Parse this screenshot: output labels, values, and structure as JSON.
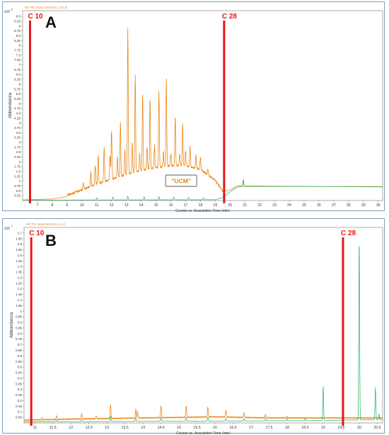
{
  "chart_data": [
    {
      "type": "line",
      "panel_letter": "A",
      "trace_title": "+EI TIC Scan 11Nov21_c18.d",
      "y_multiplier": "x10",
      "y_exponent": "6",
      "ylabel": "Abbondanza",
      "xlabel": "Counts vs. Acquisition Time (min)",
      "xlim": [
        6.0,
        30.3
      ],
      "ylim": [
        0,
        9.8
      ],
      "x_ticks": [
        7,
        8,
        9,
        10,
        11,
        12,
        13,
        14,
        15,
        16,
        17,
        18,
        19,
        20,
        21,
        22,
        23,
        24,
        25,
        26,
        27,
        28,
        29,
        30
      ],
      "y_ticks": [
        0.25,
        0.5,
        0.75,
        1,
        1.25,
        1.5,
        1.75,
        2,
        2.25,
        2.5,
        2.75,
        3,
        3.25,
        3.5,
        3.75,
        4,
        4.25,
        4.5,
        4.75,
        5,
        5.25,
        5.5,
        5.75,
        6,
        6.25,
        6.5,
        6.75,
        7,
        7.25,
        7.5,
        7.75,
        8,
        8.25,
        8.5,
        8.75,
        9,
        9.25,
        9.5
      ],
      "y_tick_labels": [
        "0.25",
        "0.5",
        "0.75",
        "1",
        "1.25",
        "1.5",
        "1.75",
        "2",
        "2.25",
        "2.5",
        "2.75",
        "3",
        "3.25",
        "3.5",
        "3.75",
        "4",
        "4.25",
        "4.5",
        "4.75",
        "5",
        "5.25",
        "5.5",
        "5.75",
        "6",
        "6.25",
        "6.5",
        "6.75",
        "7",
        "7.25",
        "7.5",
        "7.75",
        "8",
        "8.25",
        "8.5",
        "8.75",
        "9",
        "9.25",
        "9.5"
      ],
      "series": [
        {
          "color": "#e8820c",
          "baseline": [
            [
              6.0,
              0.03
            ],
            [
              8.0,
              0.08
            ],
            [
              9.0,
              0.2
            ],
            [
              10.0,
              0.5
            ],
            [
              11.0,
              0.8
            ],
            [
              12.0,
              1.05
            ],
            [
              13.0,
              1.3
            ],
            [
              14.0,
              1.5
            ],
            [
              15.0,
              1.65
            ],
            [
              16.0,
              1.75
            ],
            [
              17.0,
              1.75
            ],
            [
              18.0,
              1.55
            ],
            [
              19.0,
              1.0
            ],
            [
              19.5,
              0.45
            ],
            [
              20.0,
              0.55
            ],
            [
              20.5,
              0.75
            ],
            [
              21.0,
              0.75
            ],
            [
              30.3,
              0.7
            ]
          ],
          "peaks": [
            [
              9.1,
              0.3
            ],
            [
              9.6,
              0.45
            ],
            [
              10.1,
              0.9
            ],
            [
              10.6,
              1.4
            ],
            [
              10.9,
              1.8
            ],
            [
              11.1,
              2.3
            ],
            [
              11.5,
              2.75
            ],
            [
              11.9,
              2.3
            ],
            [
              12.0,
              3.6
            ],
            [
              12.4,
              2.2
            ],
            [
              12.6,
              4.0
            ],
            [
              12.9,
              2.6
            ],
            [
              13.1,
              8.8
            ],
            [
              13.4,
              3.0
            ],
            [
              13.6,
              6.5
            ],
            [
              13.9,
              2.4
            ],
            [
              14.1,
              5.5
            ],
            [
              14.4,
              2.7
            ],
            [
              14.6,
              5.3
            ],
            [
              14.9,
              2.8
            ],
            [
              15.2,
              5.6
            ],
            [
              15.5,
              2.5
            ],
            [
              15.7,
              6.2
            ],
            [
              16.0,
              2.4
            ],
            [
              16.3,
              4.3
            ],
            [
              16.6,
              2.4
            ],
            [
              16.8,
              3.9
            ],
            [
              17.0,
              2.5
            ],
            [
              17.3,
              2.8
            ],
            [
              17.7,
              2.3
            ],
            [
              18.0,
              2.2
            ],
            [
              18.5,
              1.6
            ],
            [
              20.9,
              1.1
            ]
          ]
        },
        {
          "color": "#2bb56a",
          "baseline": [
            [
              6.0,
              0.02
            ],
            [
              19.0,
              0.04
            ],
            [
              19.5,
              0.15
            ],
            [
              20.0,
              0.45
            ],
            [
              20.5,
              0.7
            ],
            [
              21.0,
              0.72
            ],
            [
              30.3,
              0.72
            ]
          ],
          "peaks": [
            [
              11.0,
              0.14
            ],
            [
              12.1,
              0.18
            ],
            [
              13.1,
              0.22
            ],
            [
              14.2,
              0.2
            ],
            [
              15.2,
              0.2
            ],
            [
              16.2,
              0.18
            ],
            [
              17.2,
              0.16
            ],
            [
              18.2,
              0.14
            ],
            [
              20.9,
              1.05
            ]
          ]
        }
      ],
      "annotations": [
        {
          "text": "C 10",
          "x": 6.5,
          "color": "#e8141c"
        },
        {
          "text": "C 28",
          "x": 19.6,
          "color": "#e8141c"
        },
        {
          "text": "\"UCM\"",
          "x": 16.7,
          "y": 0.4,
          "color": "#e8820c"
        }
      ]
    },
    {
      "type": "line",
      "panel_letter": "B",
      "trace_title": "+EI TIC Scan 8Nov21_c1.d",
      "y_multiplier": "x10",
      "y_exponent": "7",
      "ylabel": "Abbondanza",
      "xlabel": "Counts vs. Acquisition Time (min)",
      "xlim": [
        10.7,
        20.65
      ],
      "ylim": [
        0,
        1.75
      ],
      "x_ticks": [
        11,
        11.5,
        12,
        12.5,
        13,
        13.5,
        14,
        14.5,
        15,
        15.5,
        16,
        16.5,
        17,
        17.5,
        18,
        18.5,
        19,
        19.5,
        20,
        20.5
      ],
      "x_tick_labels": [
        "11",
        "11.5",
        "12",
        "12.5",
        "13",
        "13.5",
        "14",
        "14.5",
        "15",
        "15.5",
        "16",
        "16.5",
        "17",
        "17.5",
        "18",
        "18.5",
        "19",
        "19.5",
        "20",
        "20.5"
      ],
      "y_ticks": [
        0.05,
        0.1,
        0.15,
        0.2,
        0.25,
        0.3,
        0.35,
        0.4,
        0.45,
        0.5,
        0.55,
        0.6,
        0.65,
        0.7,
        0.75,
        0.8,
        0.85,
        0.9,
        0.95,
        1,
        1.05,
        1.1,
        1.15,
        1.2,
        1.25,
        1.3,
        1.35,
        1.4,
        1.45,
        1.5,
        1.55,
        1.6,
        1.65,
        1.7
      ],
      "y_tick_labels": [
        "0.05",
        "0.1",
        "0.15",
        "0.2",
        "0.25",
        "0.3",
        "0.35",
        "0.4",
        "0.45",
        "0.5",
        "0.55",
        "0.6",
        "0.65",
        "0.7",
        "0.75",
        "0.8",
        "0.85",
        "0.9",
        "0.95",
        "1",
        "1.05",
        "1.1",
        "1.15",
        "1.2",
        "1.25",
        "1.3",
        "1.35",
        "1.4",
        "1.45",
        "1.5",
        "1.55",
        "1.6",
        "1.65",
        "1.7"
      ],
      "series": [
        {
          "color": "#e8820c",
          "baseline": [
            [
              10.7,
              0.02
            ],
            [
              12.0,
              0.03
            ],
            [
              14.0,
              0.04
            ],
            [
              16.0,
              0.05
            ],
            [
              17.5,
              0.04
            ],
            [
              18.5,
              0.04
            ],
            [
              19.0,
              0.04
            ],
            [
              20.65,
              0.04
            ]
          ],
          "peaks": [
            [
              11.2,
              0.04
            ],
            [
              11.6,
              0.06
            ],
            [
              12.3,
              0.08
            ],
            [
              12.7,
              0.06
            ],
            [
              13.1,
              0.16
            ],
            [
              13.8,
              0.12
            ],
            [
              13.85,
              0.1
            ],
            [
              14.5,
              0.15
            ],
            [
              15.2,
              0.15
            ],
            [
              15.8,
              0.14
            ],
            [
              16.3,
              0.11
            ],
            [
              16.8,
              0.09
            ],
            [
              17.4,
              0.07
            ],
            [
              18.0,
              0.05
            ]
          ]
        },
        {
          "color": "#2bb56a",
          "baseline": [
            [
              10.7,
              0.01
            ],
            [
              18.5,
              0.02
            ],
            [
              20.65,
              0.03
            ]
          ],
          "peaks": [
            [
              11.2,
              0.02
            ],
            [
              11.6,
              0.03
            ],
            [
              12.3,
              0.03
            ],
            [
              13.1,
              0.06
            ],
            [
              13.8,
              0.05
            ],
            [
              14.5,
              0.05
            ],
            [
              15.2,
              0.05
            ],
            [
              15.8,
              0.05
            ],
            [
              16.3,
              0.04
            ],
            [
              16.8,
              0.04
            ],
            [
              17.4,
              0.04
            ],
            [
              18.0,
              0.04
            ],
            [
              18.5,
              0.04
            ],
            [
              19.0,
              0.33
            ],
            [
              20.0,
              1.65
            ],
            [
              20.45,
              0.32
            ],
            [
              20.55,
              0.08
            ]
          ]
        }
      ],
      "annotations": [
        {
          "text": "C 10",
          "x": 10.9,
          "color": "#e8141c"
        },
        {
          "text": "C 28",
          "x": 19.55,
          "color": "#e8141c"
        }
      ]
    }
  ]
}
